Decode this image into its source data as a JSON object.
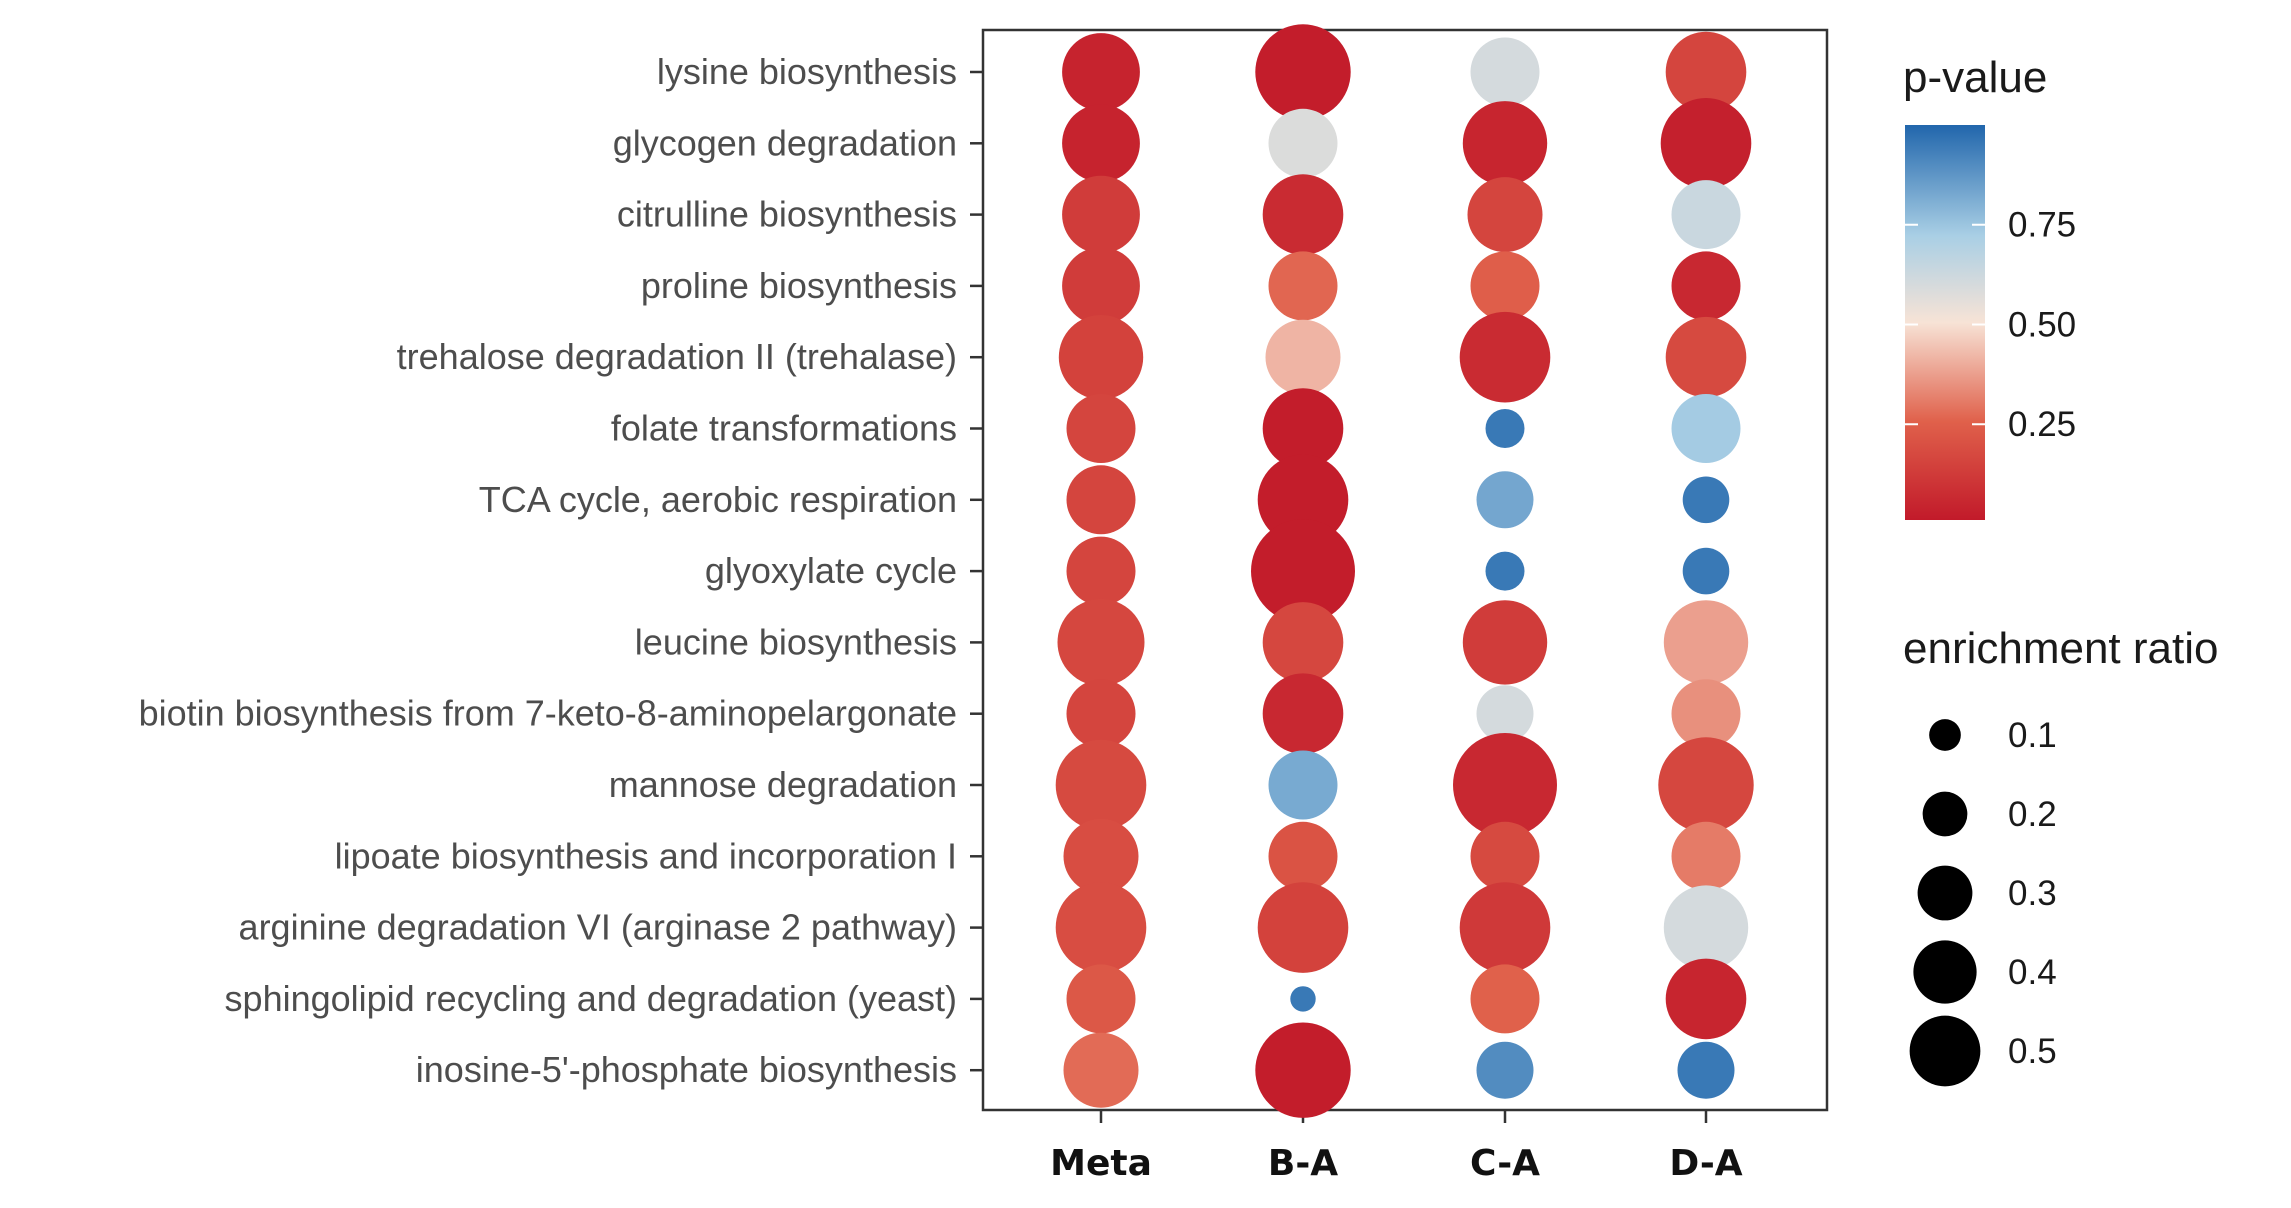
{
  "chart_data": {
    "type": "scatter",
    "subtype": "bubble",
    "categories_x": [
      "Meta",
      "B-A",
      "C-A",
      "D-A"
    ],
    "categories_y": [
      "lysine biosynthesis",
      "glycogen degradation",
      "citrulline biosynthesis",
      "proline biosynthesis",
      "trehalose degradation II (trehalase)",
      "folate transformations",
      "TCA cycle, aerobic respiration",
      "glyoxylate cycle",
      "leucine biosynthesis",
      "biotin biosynthesis from 7-keto-8-aminopelargonate",
      "mannose degradation",
      "lipoate biosynthesis and incorporation I",
      "arginine degradation VI (arginase 2 pathway)",
      "sphingolipid recycling and degradation (yeast)",
      "inosine-5'-phosphate biosynthesis"
    ],
    "series": [
      {
        "x": "Meta",
        "p_value": [
          0.03,
          0.03,
          0.12,
          0.12,
          0.14,
          0.15,
          0.15,
          0.15,
          0.16,
          0.15,
          0.17,
          0.18,
          0.18,
          0.22,
          0.27
        ],
        "enrichment_ratio": [
          0.28,
          0.28,
          0.28,
          0.28,
          0.33,
          0.22,
          0.22,
          0.22,
          0.35,
          0.22,
          0.38,
          0.26,
          0.38,
          0.22,
          0.26
        ]
      },
      {
        "x": "B-A",
        "p_value": [
          0.01,
          0.58,
          0.06,
          0.26,
          0.41,
          0.01,
          0.01,
          0.01,
          0.16,
          0.05,
          0.82,
          0.2,
          0.14,
          0.95,
          0.01
        ],
        "enrichment_ratio": [
          0.42,
          0.22,
          0.3,
          0.22,
          0.26,
          0.3,
          0.38,
          0.5,
          0.3,
          0.3,
          0.22,
          0.22,
          0.38,
          0.03,
          0.42
        ]
      },
      {
        "x": "C-A",
        "p_value": [
          0.6,
          0.04,
          0.15,
          0.24,
          0.06,
          0.95,
          0.83,
          0.95,
          0.12,
          0.6,
          0.05,
          0.17,
          0.11,
          0.25,
          0.9
        ],
        "enrichment_ratio": [
          0.22,
          0.33,
          0.26,
          0.22,
          0.38,
          0.07,
          0.15,
          0.07,
          0.33,
          0.15,
          0.5,
          0.22,
          0.38,
          0.22,
          0.15
        ]
      },
      {
        "x": "D-A",
        "p_value": [
          0.15,
          0.02,
          0.63,
          0.05,
          0.17,
          0.73,
          0.95,
          0.95,
          0.37,
          0.34,
          0.16,
          0.3,
          0.6,
          0.04,
          0.95
        ],
        "enrichment_ratio": [
          0.3,
          0.38,
          0.22,
          0.22,
          0.3,
          0.22,
          0.1,
          0.1,
          0.33,
          0.22,
          0.42,
          0.22,
          0.33,
          0.3,
          0.15
        ]
      }
    ],
    "color_legend": {
      "title": "p-value",
      "ticks": [
        "0.75",
        "0.50",
        "0.25"
      ],
      "tick_values": [
        0.75,
        0.5,
        0.25
      ],
      "range": [
        0.01,
        1.0
      ],
      "low_color": "#c21a2a",
      "mid_color": "#f7f7f7",
      "high_color": "#2166ac"
    },
    "size_legend": {
      "title": "enrichment ratio",
      "labels": [
        "0.1",
        "0.2",
        "0.3",
        "0.4",
        "0.5"
      ],
      "values": [
        0.1,
        0.2,
        0.3,
        0.4,
        0.5
      ]
    }
  }
}
